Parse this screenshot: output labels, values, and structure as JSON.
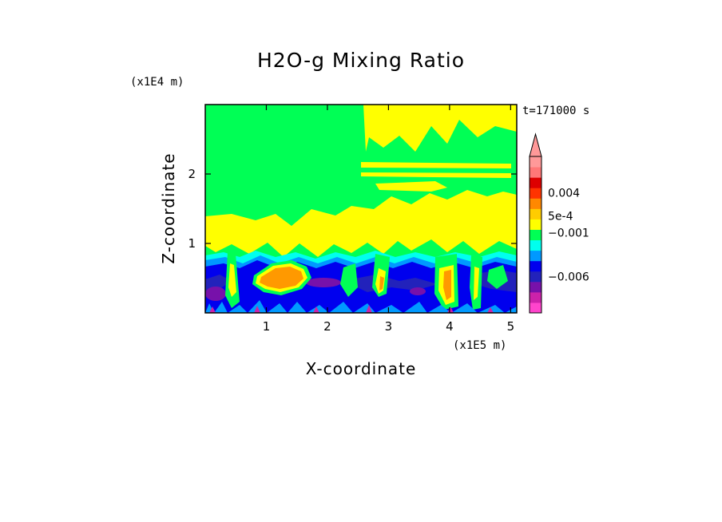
{
  "chart_data": {
    "type": "heatmap",
    "title": "H2O-g Mixing Ratio",
    "xlabel": "X-coordinate",
    "ylabel": "Z-coordinate",
    "x_unit": "(x1E5 m)",
    "y_unit": "(x1E4 m)",
    "time_label": "t=171000 s",
    "xlim": [
      0,
      5.1
    ],
    "ylim": [
      0,
      3.0
    ],
    "x_ticks": [
      1,
      2,
      3,
      4,
      5
    ],
    "x_tick_labels": [
      "1",
      "2",
      "3",
      "4",
      "5"
    ],
    "y_ticks": [
      1,
      2
    ],
    "y_tick_labels": [
      "1",
      "2"
    ],
    "colorbar": {
      "colors": [
        "#ff44cc",
        "#cc22aa",
        "#7711aa",
        "#2222bb",
        "#0000ee",
        "#0099ff",
        "#00ffee",
        "#00ff55",
        "#ffff00",
        "#ffcc00",
        "#ff8800",
        "#ff3300",
        "#dd0000",
        "#ff7777",
        "#ff9999"
      ],
      "labels": [
        {
          "text": "0.004",
          "level": 11.5
        },
        {
          "text": "5e-4",
          "level": 9.3
        },
        {
          "text": "−0.001",
          "level": 7.7
        },
        {
          "text": "−0.006",
          "level": 3.5
        }
      ]
    },
    "field_regions": {
      "upper": "#00ff55",
      "mid": "#ffff00",
      "lower": "#0000ee",
      "lower_dark": "#2222bb",
      "hotspot": "#ff9900",
      "purple": "#7711aa",
      "cyan": "#00ffee",
      "sky": "#0099ff"
    }
  }
}
